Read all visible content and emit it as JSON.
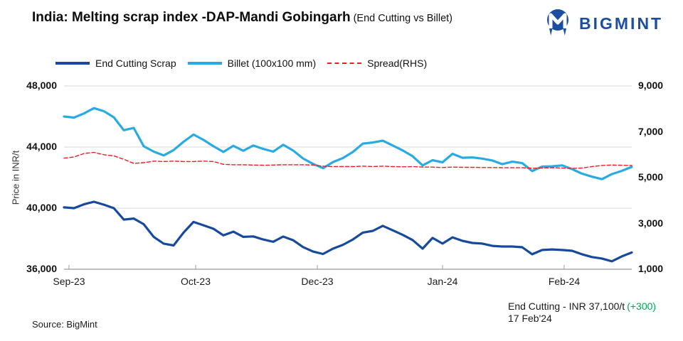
{
  "header": {
    "title": "India: Melting scrap index -DAP-Mandi Gobingarh",
    "subtitle": "(End Cutting vs Billet)",
    "brand": "BIGMINT",
    "brand_color": "#1c4da1"
  },
  "legend": [
    {
      "label": "End Cutting Scrap",
      "color": "#17499d",
      "style": "solid"
    },
    {
      "label": "Billet (100x100 mm)",
      "color": "#29abe2",
      "style": "solid"
    },
    {
      "label": "Spread(RHS)",
      "color": "#ee1c25",
      "style": "dashed"
    }
  ],
  "axes": {
    "left": {
      "title": "Price in INR/t",
      "ticks": [
        "48,000",
        "44,000",
        "40,000",
        "36,000"
      ]
    },
    "right": {
      "ticks": [
        "9,000",
        "7,000",
        "5,000",
        "3,000",
        "1,000"
      ]
    },
    "x": {
      "ticks": [
        "Sep-23",
        "Oct-23",
        "Dec-23",
        "Jan-24",
        "Feb-24"
      ]
    }
  },
  "annotation": {
    "line1": "End Cutting - INR 37,100/t",
    "change": "(+300)",
    "change_color": "#00a651",
    "line2": "17 Feb'24"
  },
  "source": "Source: BigMint",
  "chart_data": {
    "type": "line",
    "title": "India: Melting scrap index -DAP-Mandi Gobingarh (End Cutting vs Billet)",
    "ylabel_left": "Price in INR/t",
    "ylim_left": [
      36000,
      48000
    ],
    "ylim_right": [
      1000,
      9000
    ],
    "grid": "horizontal",
    "legend_position": "top",
    "x_labels": [
      "Sep-23",
      "Oct-23",
      "Dec-23",
      "Jan-24",
      "Feb-24"
    ],
    "latest": {
      "series": "End Cutting Scrap",
      "value": 37100,
      "change": 300,
      "date": "17 Feb'24"
    },
    "series": [
      {
        "name": "End Cutting Scrap",
        "axis": "left",
        "color": "#17499d",
        "width": 3.2,
        "data_name": "series-end-cutting-line",
        "values": [
          40050,
          40000,
          40250,
          40420,
          40230,
          40000,
          39250,
          39320,
          38950,
          38120,
          37680,
          37560,
          38400,
          39100,
          38880,
          38650,
          38220,
          38460,
          38120,
          38150,
          37950,
          37800,
          38140,
          37900,
          37450,
          37160,
          37000,
          37350,
          37600,
          37950,
          38400,
          38510,
          38840,
          38550,
          38250,
          37910,
          37350,
          38050,
          37680,
          38090,
          37860,
          37720,
          37680,
          37530,
          37490,
          37490,
          37440,
          36980,
          37260,
          37300,
          37260,
          37210,
          36980,
          36800,
          36700,
          36520,
          36840,
          37100
        ]
      },
      {
        "name": "Billet (100x100 mm)",
        "axis": "left",
        "color": "#29abe2",
        "width": 3.2,
        "data_name": "series-billet-line",
        "values": [
          46000,
          45930,
          46200,
          46550,
          46350,
          45950,
          45100,
          45250,
          44050,
          43700,
          43450,
          43800,
          44350,
          44820,
          44470,
          44050,
          43680,
          44080,
          43760,
          44100,
          43880,
          43700,
          44150,
          43770,
          43250,
          42900,
          42620,
          43020,
          43280,
          43680,
          44230,
          44300,
          44420,
          44100,
          43780,
          43400,
          42800,
          43140,
          43000,
          43560,
          43300,
          43320,
          43240,
          43120,
          42880,
          43040,
          42950,
          42430,
          42720,
          42740,
          42800,
          42560,
          42260,
          42060,
          41900,
          42230,
          42440,
          42700
        ]
      },
      {
        "name": "Spread(RHS)",
        "axis": "right",
        "color": "#ee1c25",
        "width": 1.4,
        "dash": "5 3",
        "data_name": "series-spread-line",
        "values": [
          5850,
          5900,
          6050,
          6100,
          6000,
          5950,
          5800,
          5620,
          5650,
          5720,
          5700,
          5720,
          5700,
          5700,
          5720,
          5700,
          5580,
          5560,
          5560,
          5550,
          5540,
          5550,
          5560,
          5560,
          5560,
          5550,
          5500,
          5480,
          5480,
          5480,
          5500,
          5480,
          5500,
          5480,
          5470,
          5480,
          5460,
          5460,
          5440,
          5460,
          5450,
          5450,
          5440,
          5440,
          5430,
          5430,
          5430,
          5410,
          5420,
          5430,
          5420,
          5400,
          5420,
          5480,
          5530,
          5550,
          5540,
          5530
        ]
      }
    ]
  }
}
